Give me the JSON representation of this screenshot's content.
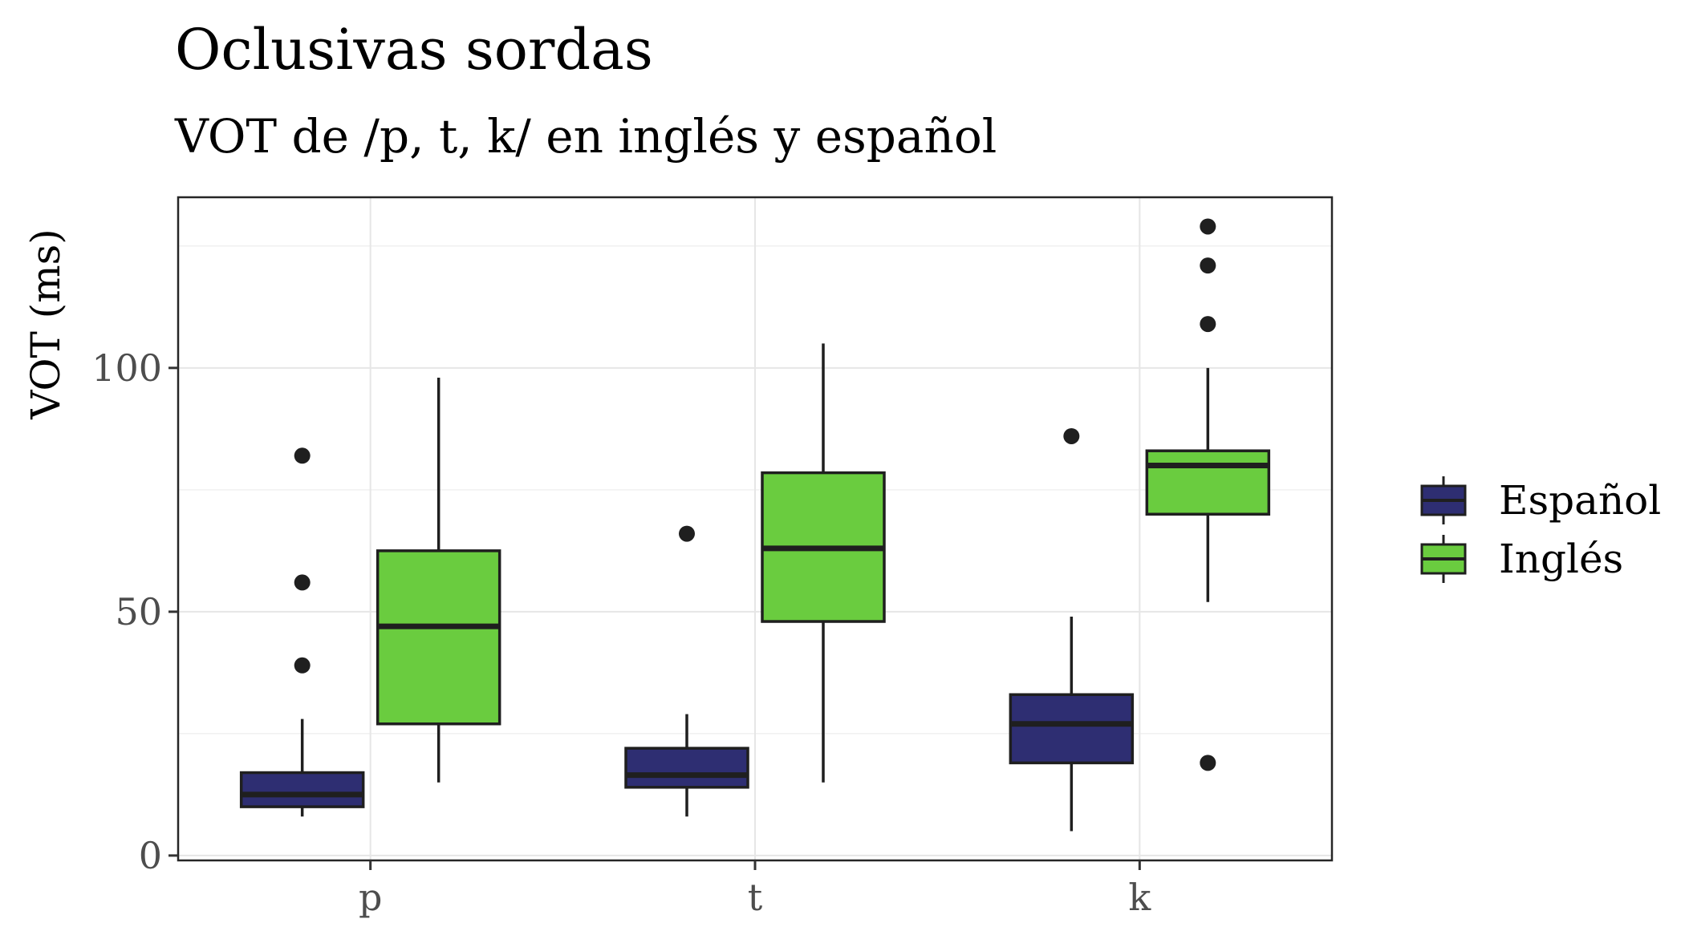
{
  "chart_data": {
    "type": "boxplot",
    "title": "Oclusivas sordas",
    "subtitle": "VOT de /p, t, k/ en inglés y español",
    "xlabel": "",
    "ylabel": "VOT (ms)",
    "ylim": [
      -1,
      135
    ],
    "yticks": [
      0,
      50,
      100
    ],
    "categories": [
      "p",
      "t",
      "k"
    ],
    "grid": true,
    "legend_position": "right",
    "series": [
      {
        "name": "Español",
        "color": "#2e2e72",
        "boxes": [
          {
            "category": "p",
            "whisker_low": 8,
            "q1": 10,
            "median": 12.5,
            "q3": 17,
            "whisker_high": 28,
            "outliers": [
              39,
              56,
              82
            ]
          },
          {
            "category": "t",
            "whisker_low": 8,
            "q1": 14,
            "median": 16.5,
            "q3": 22,
            "whisker_high": 29,
            "outliers": [
              66
            ]
          },
          {
            "category": "k",
            "whisker_low": 5,
            "q1": 19,
            "median": 27,
            "q3": 33,
            "whisker_high": 49,
            "outliers": [
              86
            ]
          }
        ]
      },
      {
        "name": "Inglés",
        "color": "#6acc3f",
        "boxes": [
          {
            "category": "p",
            "whisker_low": 15,
            "q1": 27,
            "median": 47,
            "q3": 62.5,
            "whisker_high": 98,
            "outliers": []
          },
          {
            "category": "t",
            "whisker_low": 15,
            "q1": 48,
            "median": 63,
            "q3": 78.5,
            "whisker_high": 105,
            "outliers": []
          },
          {
            "category": "k",
            "whisker_low": 52,
            "q1": 70,
            "median": 80,
            "q3": 83,
            "whisker_high": 100,
            "outliers": [
              19,
              109,
              121,
              129
            ]
          }
        ]
      }
    ]
  }
}
